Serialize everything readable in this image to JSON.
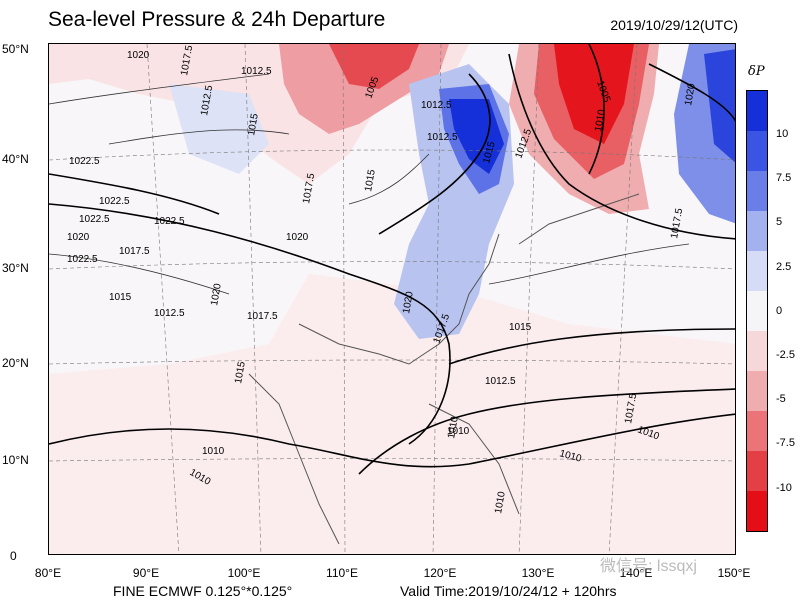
{
  "title": "Sea-level Pressure & 24h Departure",
  "valid_date": "2019/10/29/12(UTC)",
  "model": "FINE ECMWF 0.125°*0.125°",
  "valid_time": "Valid Time:2019/10/24/12 + 120hrs",
  "watermark": "微信号: lssqxj",
  "legend": {
    "symbol": "δP",
    "ticks": [
      "10",
      "7.5",
      "5",
      "2.5",
      "0",
      "-2.5",
      "-5",
      "-7.5",
      "-10"
    ],
    "colors": [
      "#1530d8",
      "#3a55e3",
      "#6a7ee8",
      "#a3b2ee",
      "#d6dcf5",
      "#f5f4f7",
      "#f7d8da",
      "#f0adb0",
      "#ea7478",
      "#e33f45",
      "#e40e16"
    ]
  },
  "lat_labels": [
    "50°N",
    "40°N",
    "30°N",
    "20°N",
    "10°N",
    "0"
  ],
  "lon_labels": [
    "80°E",
    "90°E",
    "100°E",
    "110°E",
    "120°E",
    "130°E",
    "140°E",
    "150°E"
  ],
  "isobars": [
    "1020",
    "1017.5",
    "1012.5",
    "1005",
    "1012.5",
    "1015",
    "1022.5",
    "1022.5",
    "1022.5",
    "1020",
    "1022.5",
    "1017.5",
    "1015",
    "1012.5",
    "1020",
    "1017.5",
    "1012.5",
    "1015",
    "1012.5",
    "1010",
    "1015",
    "1017.5",
    "1020",
    "1012.5",
    "1010",
    "1010",
    "1010",
    "1010",
    "1012.5",
    "1017.5",
    "1020",
    "1010",
    "1005",
    "1015",
    "1017.5",
    "1022.5",
    "1010",
    "1010",
    "1017.5",
    "1020",
    "1015"
  ]
}
